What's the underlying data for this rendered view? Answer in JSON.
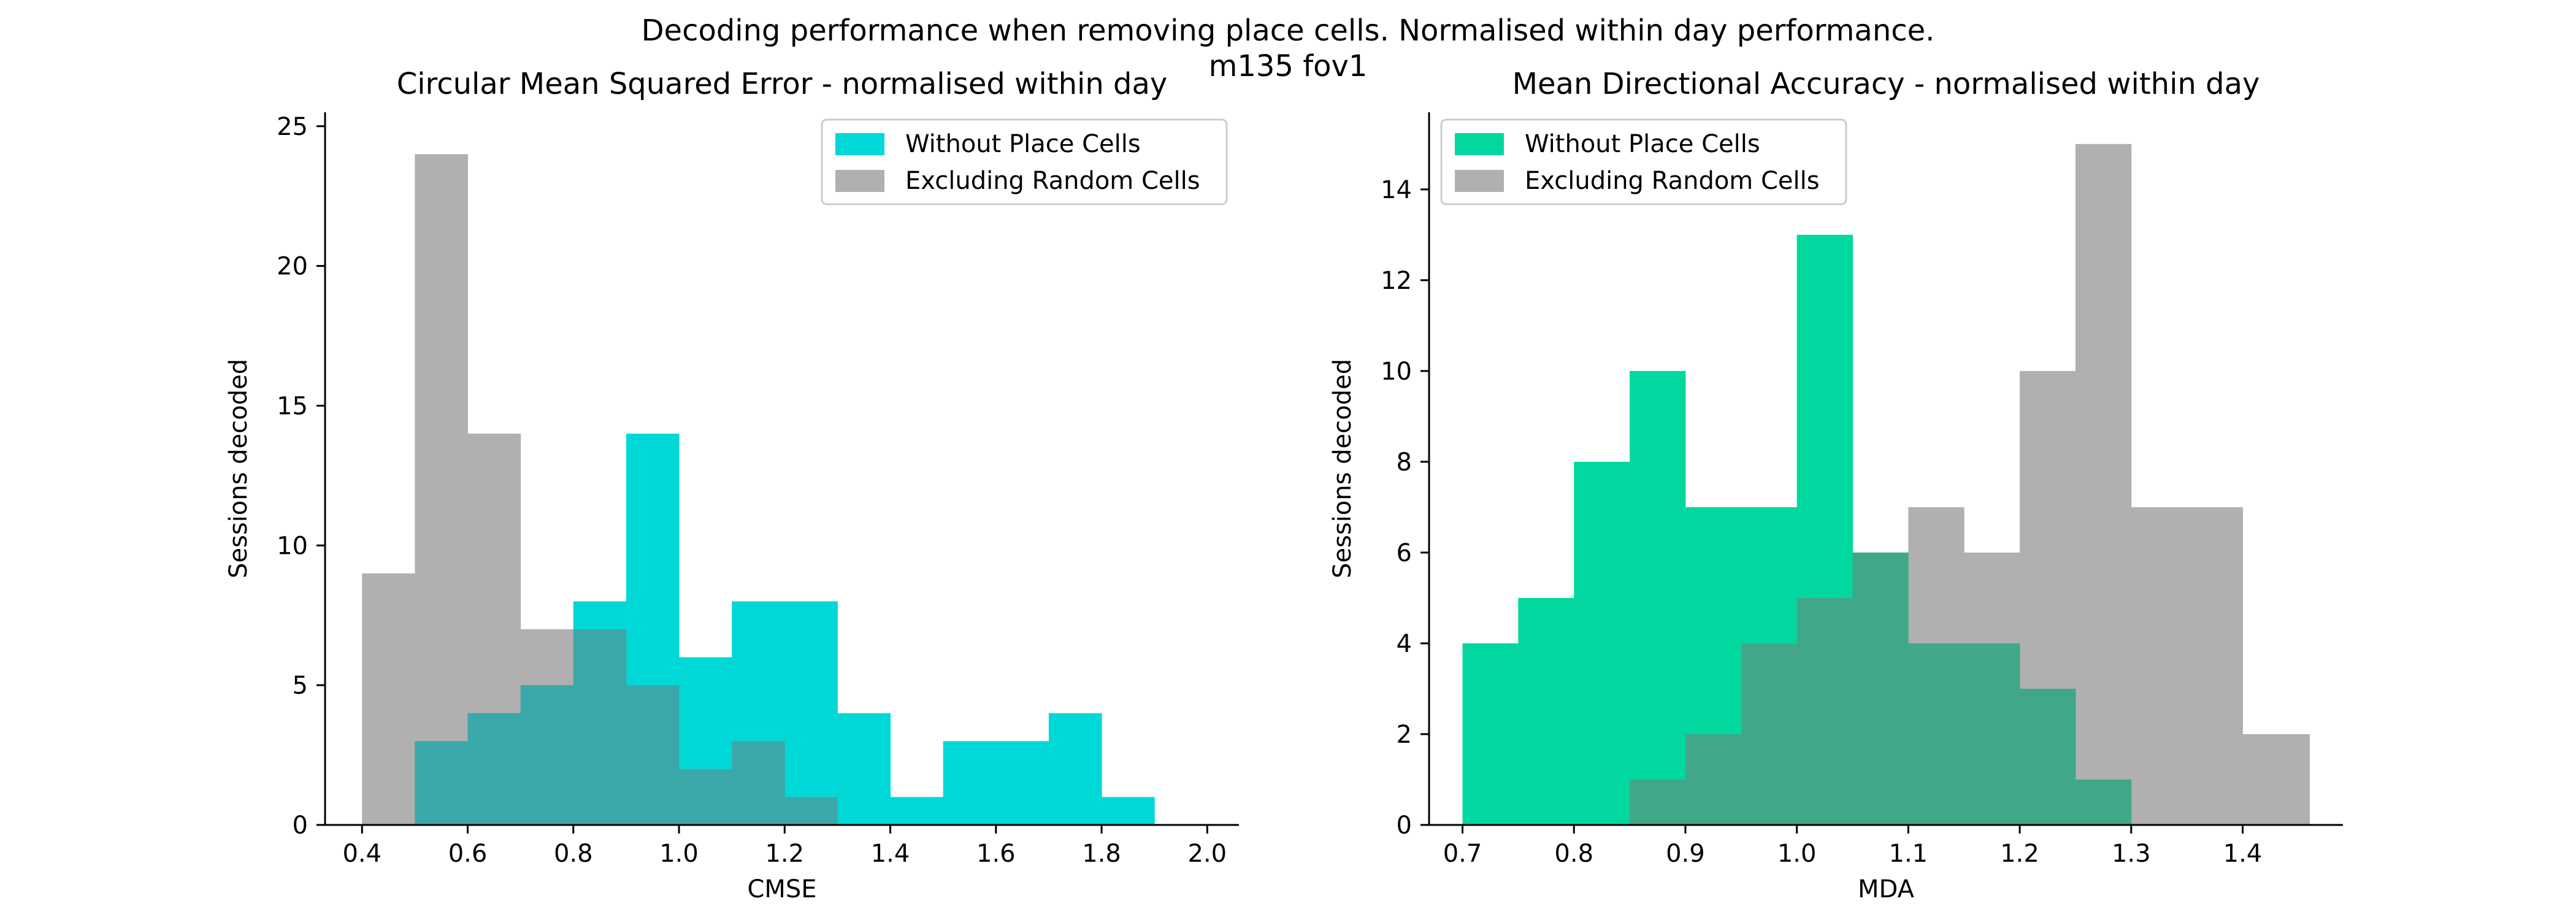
{
  "figure": {
    "suptitle_line1": "Decoding performance when removing place cells. Normalised within day performance.",
    "suptitle_line2": "m135 fov1"
  },
  "colors": {
    "left_primary": "#00d8d8",
    "right_primary": "#00d8a0",
    "secondary": "#b0b0b0",
    "overlap_left": "#3aa8a8",
    "overlap_right": "#40a888"
  },
  "chart_data": [
    {
      "type": "bar",
      "title": "Circular Mean Squared Error - normalised within day",
      "xlabel": "CMSE",
      "ylabel": "Sessions decoded",
      "xlim": [
        0.33,
        2.06
      ],
      "ylim": [
        0,
        25.5
      ],
      "xticks": [
        0.4,
        0.6,
        0.8,
        1.0,
        1.2,
        1.4,
        1.6,
        1.8,
        2.0
      ],
      "xtick_labels": [
        "0.4",
        "0.6",
        "0.8",
        "1.0",
        "1.2",
        "1.4",
        "1.6",
        "1.8",
        "2.0"
      ],
      "yticks": [
        0,
        5,
        10,
        15,
        20,
        25
      ],
      "ytick_labels": [
        "0",
        "5",
        "10",
        "15",
        "20",
        "25"
      ],
      "legend_position": "top-right",
      "series": [
        {
          "name": "Without Place Cells",
          "color_key": "left_primary",
          "bin_edges": [
            0.5,
            0.6,
            0.7,
            0.8,
            0.9,
            1.0,
            1.1,
            1.2,
            1.3,
            1.4,
            1.5,
            1.6,
            1.7,
            1.8,
            1.9,
            2.0
          ],
          "counts": [
            3,
            4,
            5,
            8,
            14,
            6,
            8,
            8,
            4,
            1,
            3,
            3,
            4,
            1,
            0
          ]
        },
        {
          "name": "Excluding Random Cells",
          "color_key": "secondary",
          "bin_edges": [
            0.4,
            0.5,
            0.6,
            0.7,
            0.8,
            0.9,
            1.0,
            1.1,
            1.2,
            1.3,
            1.35
          ],
          "counts": [
            9,
            24,
            14,
            7,
            7,
            5,
            2,
            3,
            1,
            0
          ]
        }
      ]
    },
    {
      "type": "bar",
      "title": "Mean Directional Accuracy - normalised within day",
      "xlabel": "MDA",
      "ylabel": "Sessions decoded",
      "xlim": [
        0.67,
        1.49
      ],
      "ylim": [
        0,
        15.7
      ],
      "xticks": [
        0.7,
        0.8,
        0.9,
        1.0,
        1.1,
        1.2,
        1.3,
        1.4
      ],
      "xtick_labels": [
        "0.7",
        "0.8",
        "0.9",
        "1.0",
        "1.1",
        "1.2",
        "1.3",
        "1.4"
      ],
      "yticks": [
        0,
        2,
        4,
        6,
        8,
        10,
        12,
        14
      ],
      "ytick_labels": [
        "0",
        "2",
        "4",
        "6",
        "8",
        "10",
        "12",
        "14"
      ],
      "legend_position": "top-left",
      "series": [
        {
          "name": "Without Place Cells",
          "color_key": "right_primary",
          "bin_edges": [
            0.7,
            0.75,
            0.8,
            0.85,
            0.9,
            0.95,
            1.0,
            1.05,
            1.1,
            1.15,
            1.2,
            1.25,
            1.3
          ],
          "counts": [
            4,
            5,
            8,
            10,
            7,
            7,
            13,
            6,
            4,
            4,
            3,
            1
          ]
        },
        {
          "name": "Excluding Random Cells",
          "color_key": "secondary",
          "bin_edges": [
            0.85,
            0.9,
            0.95,
            1.0,
            1.05,
            1.1,
            1.15,
            1.2,
            1.25,
            1.3,
            1.35,
            1.4,
            1.46
          ],
          "counts": [
            1,
            2,
            4,
            5,
            6,
            7,
            6,
            10,
            15,
            7,
            7,
            2
          ]
        }
      ]
    }
  ]
}
